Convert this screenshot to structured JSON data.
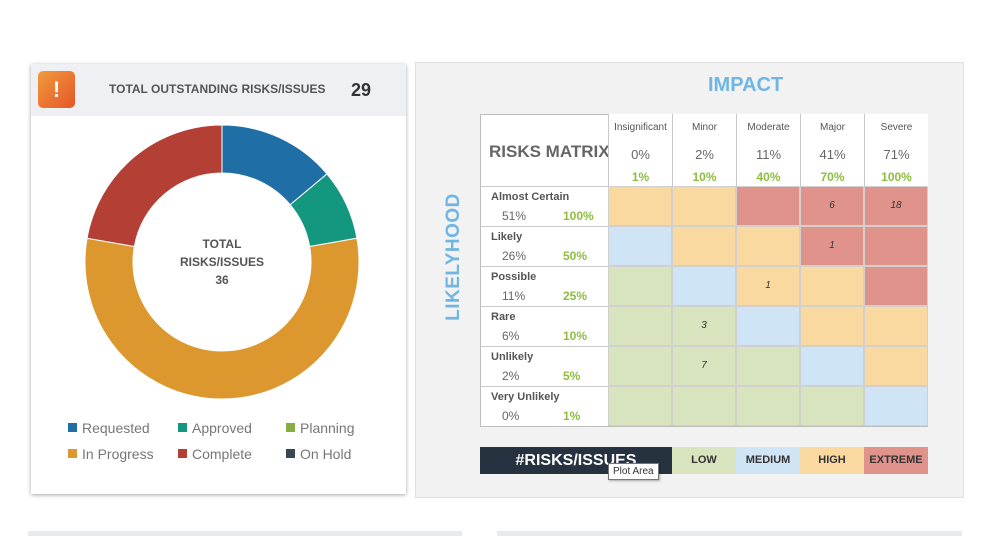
{
  "summary": {
    "title": "TOTAL OUTSTANDING RISKS/ISSUES",
    "count": "29",
    "warn_icon": "!",
    "donut_center": {
      "line1": "TOTAL",
      "line2": "RISKS/ISSUES",
      "line3": "36"
    },
    "donut": [
      {
        "name": "Requested",
        "value": 5,
        "color": "#1f6fa6"
      },
      {
        "name": "Approved",
        "value": 3,
        "color": "#14977f"
      },
      {
        "name": "Planning",
        "value": 0,
        "color": "#86ad45"
      },
      {
        "name": "In Progress",
        "value": 20,
        "color": "#dc982e"
      },
      {
        "name": "Complete",
        "value": 8,
        "color": "#b43f35"
      },
      {
        "name": "On Hold",
        "value": 0,
        "color": "#3b4654"
      }
    ],
    "legend": [
      "Requested",
      "Approved",
      "Planning",
      "In Progress",
      "Complete",
      "On Hold"
    ]
  },
  "matrix": {
    "impact_title": "IMPACT",
    "likelyhood_title": "LIKELYHOOD",
    "title": "RISKS MATRIX",
    "columns": [
      {
        "name": "Insignificant",
        "pct": "0%",
        "score": "1%"
      },
      {
        "name": "Minor",
        "pct": "2%",
        "score": "10%"
      },
      {
        "name": "Moderate",
        "pct": "11%",
        "score": "40%"
      },
      {
        "name": "Major",
        "pct": "41%",
        "score": "70%"
      },
      {
        "name": "Severe",
        "pct": "71%",
        "score": "100%"
      }
    ],
    "rows": [
      {
        "name": "Almost Certain",
        "pct": "51%",
        "score": "100%",
        "cells": [
          "",
          "",
          "",
          "6",
          "18"
        ]
      },
      {
        "name": "Likely",
        "pct": "26%",
        "score": "50%",
        "cells": [
          "",
          "",
          "",
          "1",
          ""
        ]
      },
      {
        "name": "Possible",
        "pct": "11%",
        "score": "25%",
        "cells": [
          "",
          "",
          "1",
          "",
          ""
        ]
      },
      {
        "name": "Rare",
        "pct": "6%",
        "score": "10%",
        "cells": [
          "",
          "3",
          "",
          "",
          ""
        ]
      },
      {
        "name": "Unlikely",
        "pct": "2%",
        "score": "5%",
        "cells": [
          "",
          "7",
          "",
          "",
          ""
        ]
      },
      {
        "name": "Very Unlikely",
        "pct": "0%",
        "score": "1%",
        "cells": [
          "",
          "",
          "",
          "",
          ""
        ]
      }
    ],
    "levels": [
      [
        "high",
        "high",
        "ext",
        "ext",
        "ext"
      ],
      [
        "med",
        "high",
        "high",
        "ext",
        "ext"
      ],
      [
        "low",
        "med",
        "high",
        "high",
        "ext"
      ],
      [
        "low",
        "low",
        "med",
        "high",
        "high"
      ],
      [
        "low",
        "low",
        "low",
        "med",
        "high"
      ],
      [
        "low",
        "low",
        "low",
        "low",
        "med"
      ]
    ],
    "legend_label": "#RISKS/ISSUES",
    "legend_levels": [
      {
        "label": "LOW",
        "color": "#d7e4bd"
      },
      {
        "label": "MEDIUM",
        "color": "#cfe4f5"
      },
      {
        "label": "HIGH",
        "color": "#fad9a1"
      },
      {
        "label": "EXTREME",
        "color": "#e0938b"
      }
    ],
    "tooltip": "Plot Area"
  }
}
